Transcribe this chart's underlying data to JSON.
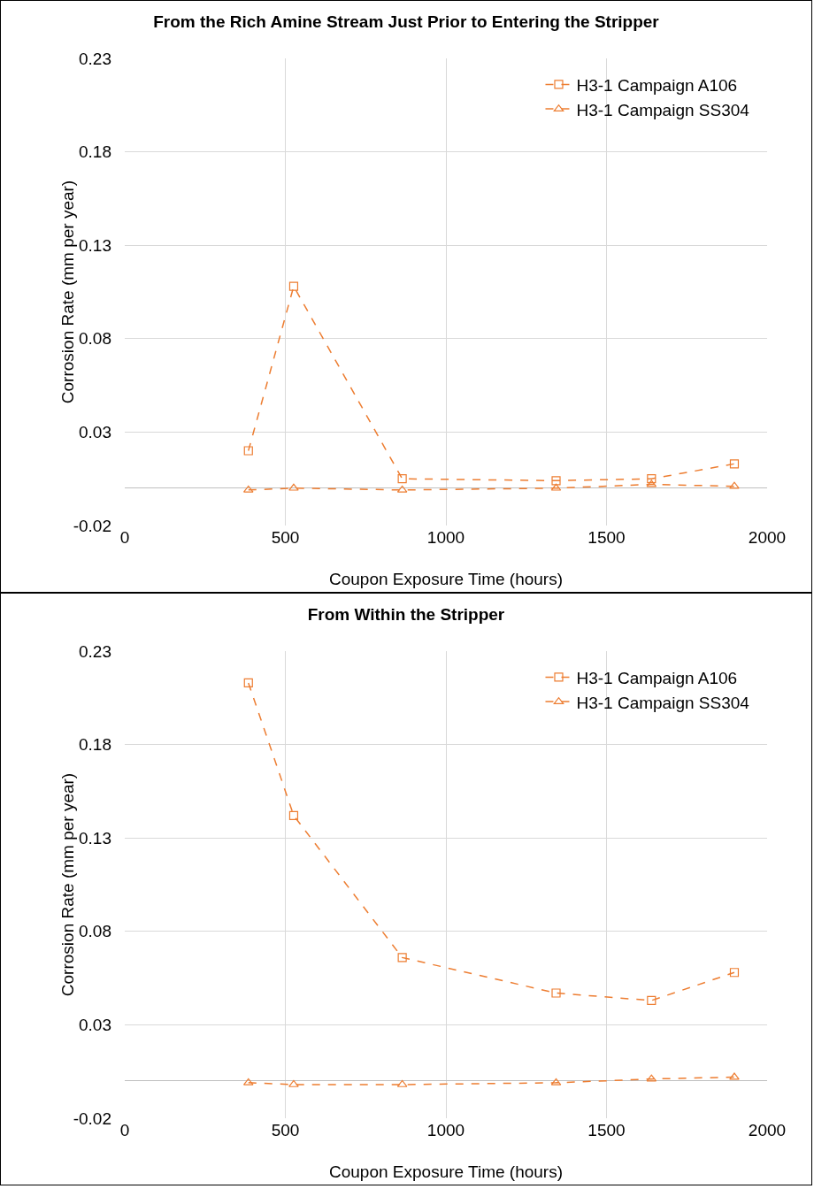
{
  "chart_data": [
    {
      "type": "line",
      "title": "From the Rich Amine Stream Just Prior to Entering the Stripper",
      "xlabel": "Coupon Exposure Time (hours)",
      "ylabel": "Corrosion Rate (mm per year)",
      "x": [
        385,
        526,
        864,
        1343,
        1640,
        1898
      ],
      "series": [
        {
          "name": "H3-1 Campaign A106",
          "color": "#ed7d31",
          "marker": "square",
          "values": [
            0.02,
            0.108,
            0.005,
            0.004,
            0.005,
            0.013
          ]
        },
        {
          "name": "H3-1 Campaign SS304",
          "color": "#ed7d31",
          "marker": "triangle",
          "values": [
            -0.001,
            0.0,
            -0.001,
            0.0,
            0.002,
            0.001
          ]
        }
      ],
      "xlim": [
        0,
        2000
      ],
      "xticks": [
        0,
        500,
        1000,
        1500,
        2000
      ],
      "ylim": [
        -0.02,
        0.23
      ],
      "yticks": [
        -0.02,
        0.03,
        0.08,
        0.13,
        0.18,
        0.23
      ],
      "grid": true,
      "legend": "top right",
      "line_style": "dashed"
    },
    {
      "type": "line",
      "title": "From Within the Stripper",
      "xlabel": "Coupon Exposure Time (hours)",
      "ylabel": "Corrosion Rate (mm per year)",
      "x": [
        385,
        526,
        864,
        1343,
        1640,
        1898
      ],
      "series": [
        {
          "name": "H3-1 Campaign A106",
          "color": "#ed7d31",
          "marker": "square",
          "values": [
            0.213,
            0.142,
            0.066,
            0.047,
            0.043,
            0.058
          ]
        },
        {
          "name": "H3-1 Campaign SS304",
          "color": "#ed7d31",
          "marker": "triangle",
          "values": [
            -0.001,
            -0.002,
            -0.002,
            -0.001,
            0.001,
            0.002
          ]
        }
      ],
      "xlim": [
        0,
        2000
      ],
      "xticks": [
        0,
        500,
        1000,
        1500,
        2000
      ],
      "ylim": [
        -0.02,
        0.23
      ],
      "yticks": [
        -0.02,
        0.03,
        0.08,
        0.13,
        0.18,
        0.23
      ],
      "grid": true,
      "legend": "top right",
      "line_style": "dashed"
    }
  ]
}
